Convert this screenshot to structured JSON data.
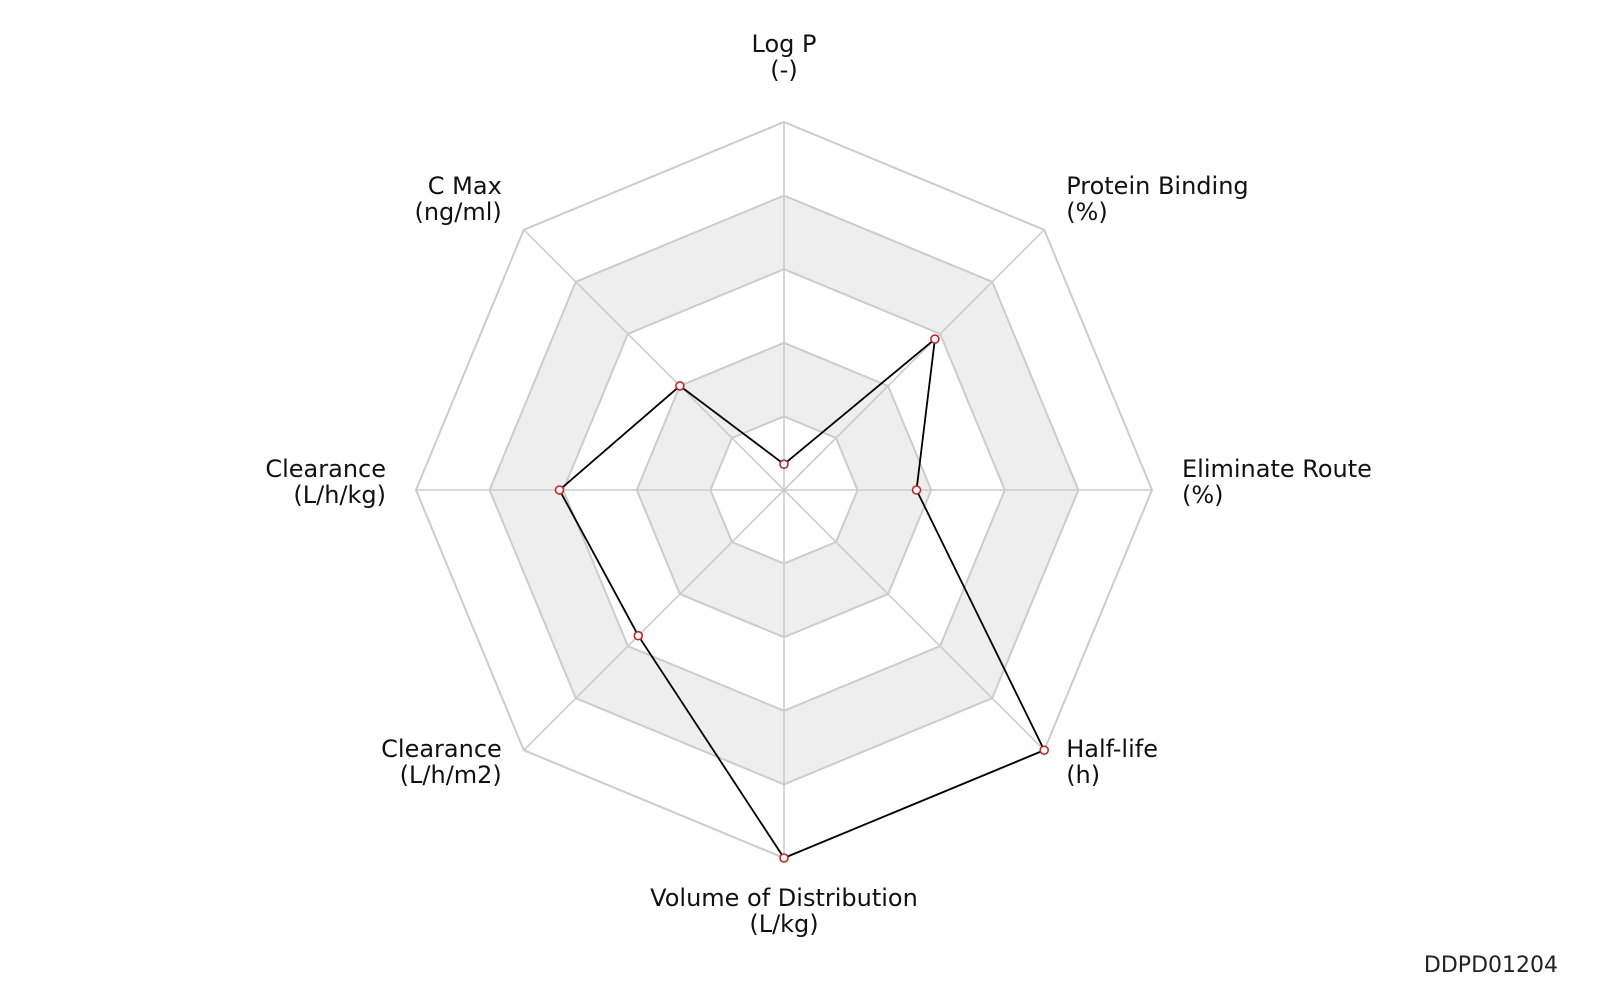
{
  "watermark": "DDPD01204",
  "chart_data": {
    "type": "radar",
    "axes": [
      {
        "label": "Log P",
        "unit": "(-)"
      },
      {
        "label": "Protein Binding",
        "unit": "(%)"
      },
      {
        "label": "Eliminate Route",
        "unit": "(%)"
      },
      {
        "label": "Half-life",
        "unit": "(h)"
      },
      {
        "label": "Volume of Distribution",
        "unit": "(L/kg)"
      },
      {
        "label": "Clearance",
        "unit": "(L/h/m2)"
      },
      {
        "label": "Clearance",
        "unit": "(L/h/kg)"
      },
      {
        "label": "C Max",
        "unit": "(ng/ml)"
      }
    ],
    "levels": 5,
    "range": [
      0,
      1
    ],
    "series": [
      {
        "values": [
          0.07,
          0.58,
          0.36,
          1.0,
          1.0,
          0.56,
          0.61,
          0.4
        ]
      }
    ],
    "colors": {
      "line": "#000000",
      "point_stroke": "#cc2222",
      "grid": "#cccccc",
      "band": "#eeeeee"
    }
  }
}
